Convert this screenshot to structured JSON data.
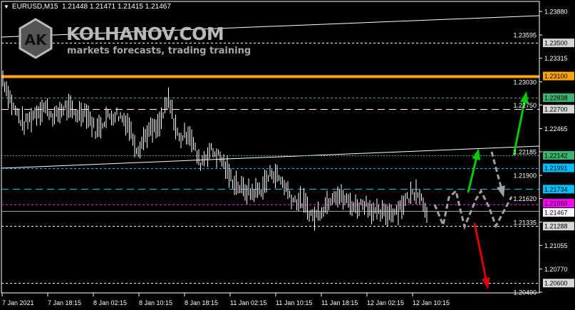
{
  "header": {
    "symbol": "EURUSD,M15",
    "open": "1.21448",
    "high": "1.21471",
    "low": "1.21415",
    "close": "1.21467"
  },
  "watermark": {
    "site": "KOLHANOV.COM",
    "tagline": "markets forecasts, trading training",
    "logo_letters": "AK"
  },
  "colors": {
    "background": "#000000",
    "bars": "#ffffff",
    "orange": "#ffa500",
    "green_level": "#3cb371",
    "blue_level": "#00bfff",
    "magenta_level": "#ff00ff",
    "up_arrow": "#00cc00",
    "down_arrow": "#dd0000",
    "forecast": "#a0a0a0"
  },
  "chart_data": {
    "type": "bar",
    "symbol": "EURUSD",
    "timeframe": "M15",
    "ylim": [
      1.2043,
      1.2397
    ],
    "y_ticks": [
      "1.23880",
      "1.23595",
      "1.23315",
      "1.23030",
      "1.22750",
      "1.22465",
      "1.22185",
      "1.21900",
      "1.21620",
      "1.21335",
      "1.21055",
      "1.20770",
      "1.20490"
    ],
    "x_ticks": [
      "7 Jan 2021",
      "7 Jan 18:15",
      "8 Jan 02:15",
      "8 Jan 10:15",
      "8 Jan 18:15",
      "11 Jan 02:15",
      "11 Jan 10:15",
      "11 Jan 18:15",
      "12 Jan 02:15",
      "12 Jan 10:15"
    ],
    "price_path": [
      1.2307,
      1.2273,
      1.2251,
      1.2264,
      1.2273,
      1.226,
      1.2273,
      1.2264,
      1.2268,
      1.2243,
      1.226,
      1.2264,
      1.2255,
      1.2221,
      1.2243,
      1.2247,
      1.2281,
      1.2234,
      1.2243,
      1.2204,
      1.2221,
      1.2212,
      1.2187,
      1.2174,
      1.2169,
      1.2174,
      1.2195,
      1.2182,
      1.2161,
      1.2157,
      1.2139,
      1.2152,
      1.2169,
      1.2161,
      1.2152,
      1.2157,
      1.2144,
      1.2144,
      1.2148,
      1.2161,
      1.2174,
      1.2146
    ],
    "levels": [
      {
        "price": "1.23500",
        "style": "dashed",
        "color": "#ffffff",
        "label_bg": "#d8d8d8"
      },
      {
        "price": "1.23100",
        "style": "solid",
        "color": "#ffa500",
        "label_bg": "#ffa500"
      },
      {
        "price": "1.22838",
        "style": "dashed",
        "color": "#3cb371",
        "label_bg": "#3cb371"
      },
      {
        "price": "1.22700",
        "style": "longdash",
        "color": "#ffffff",
        "label_bg": "#d8d8d8"
      },
      {
        "price": "1.22142",
        "style": "dotted",
        "color": "#3cb371",
        "label_bg": "#3cb371"
      },
      {
        "price": "1.21991",
        "style": "dashed",
        "color": "#00bfff",
        "label_bg": "#00bfff"
      },
      {
        "price": "1.21734",
        "style": "longdash",
        "color": "#00bfff",
        "label_bg": "#00bfff"
      },
      {
        "price": "1.21550",
        "style": "dashed",
        "color": "#ff00ff",
        "label_bg": "#ff00ff"
      },
      {
        "price": "1.21467",
        "style": "solid",
        "color": "#a0a0a0",
        "label_bg": "#ffffff"
      },
      {
        "price": "1.21288",
        "style": "dashed",
        "color": "#ffffff",
        "label_bg": "#d8d8d8"
      },
      {
        "price": "1.20600",
        "style": "dashed",
        "color": "#ffffff",
        "label_bg": "#d8d8d8"
      }
    ]
  }
}
